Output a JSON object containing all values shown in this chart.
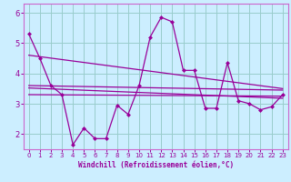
{
  "xlabel": "Windchill (Refroidissement éolien,°C)",
  "bg_color": "#cceeff",
  "grid_color": "#99cccc",
  "line_color": "#990099",
  "spine_color": "#cc66cc",
  "xlim": [
    -0.5,
    23.5
  ],
  "ylim": [
    1.5,
    6.3
  ],
  "yticks": [
    2,
    3,
    4,
    5,
    6
  ],
  "xticks": [
    0,
    1,
    2,
    3,
    4,
    5,
    6,
    7,
    8,
    9,
    10,
    11,
    12,
    13,
    14,
    15,
    16,
    17,
    18,
    19,
    20,
    21,
    22,
    23
  ],
  "series1_x": [
    0,
    1,
    2,
    3,
    4,
    5,
    6,
    7,
    8,
    9,
    10,
    11,
    12,
    13,
    14,
    15,
    16,
    17,
    18,
    19,
    20,
    21,
    22,
    23
  ],
  "series1_y": [
    5.3,
    4.5,
    3.6,
    3.3,
    1.65,
    2.2,
    1.85,
    1.85,
    2.95,
    2.65,
    3.6,
    5.2,
    5.85,
    5.7,
    4.1,
    4.1,
    2.85,
    2.85,
    4.35,
    3.1,
    3.0,
    2.8,
    2.9,
    3.3
  ],
  "series2_x": [
    0,
    23
  ],
  "series2_y": [
    3.6,
    3.45
  ],
  "series3_x": [
    0,
    23
  ],
  "series3_y": [
    3.3,
    3.25
  ],
  "series4_x": [
    0,
    23
  ],
  "series4_y": [
    4.6,
    3.5
  ],
  "series5_x": [
    0,
    23
  ],
  "series5_y": [
    3.52,
    3.18
  ]
}
